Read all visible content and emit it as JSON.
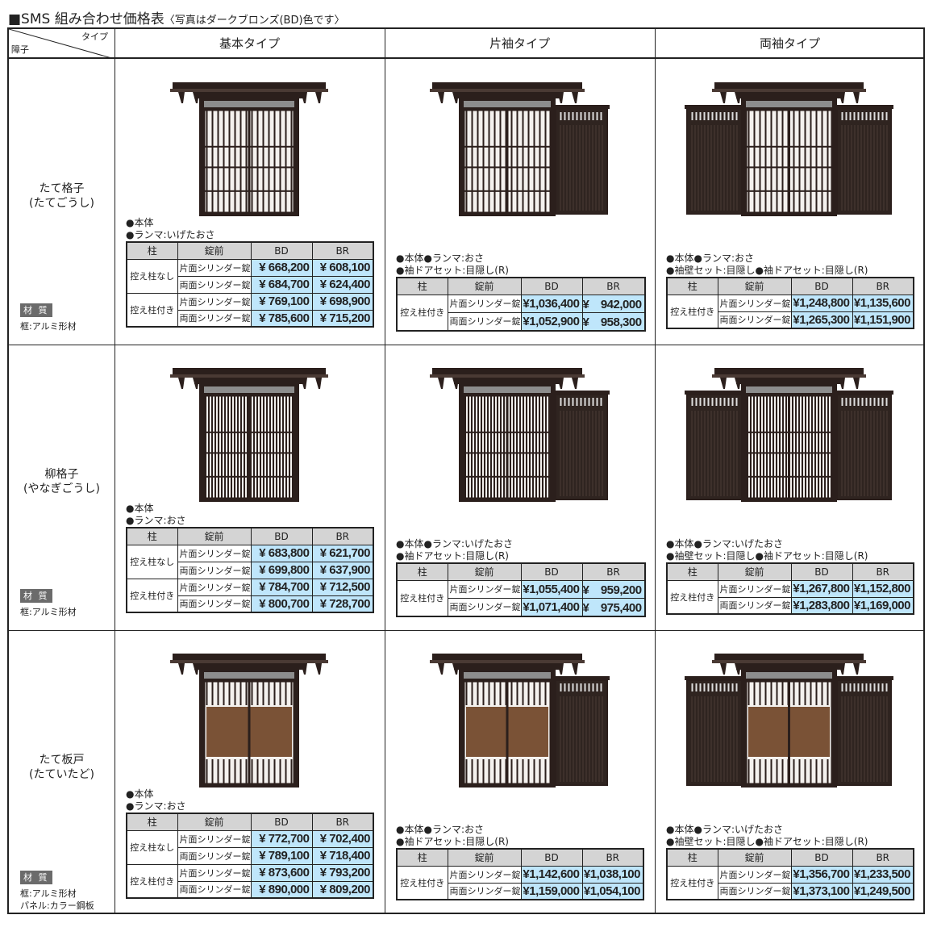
{
  "title": {
    "main": "■SMS 組み合わせ価格表",
    "note": "〈写真はダークブロンズ(BD)色です〉"
  },
  "header": {
    "corner_type": "タイプ",
    "corner_row": "障子",
    "columns": [
      "基本タイプ",
      "片袖タイプ",
      "両袖タイプ"
    ]
  },
  "table_headers": {
    "post": "柱",
    "lock": "錠前",
    "bd": "BD",
    "br": "BR"
  },
  "colors": {
    "price_bg": "#bfe6fb",
    "header_bg": "#d4d4d4",
    "frame": "#2b1f1c",
    "wood": "#7a5236"
  },
  "rows": [
    {
      "name": "たて格子",
      "reading": "(たてごうし)",
      "material_badge": "材 質",
      "material": [
        "框:アルミ形材"
      ],
      "pattern": "tate",
      "cells": [
        {
          "notes": [
            "●本体",
            "●ランマ:いげたおさ"
          ],
          "groups": [
            {
              "post": "控え柱なし",
              "locks": [
                {
                  "lock": "片面シリンダー錠",
                  "bd": "¥ 668,200",
                  "br": "¥ 608,100"
                },
                {
                  "lock": "両面シリンダー錠",
                  "bd": "¥ 684,700",
                  "br": "¥ 624,400"
                }
              ]
            },
            {
              "post": "控え柱付き",
              "locks": [
                {
                  "lock": "片面シリンダー錠",
                  "bd": "¥ 769,100",
                  "br": "¥ 698,900"
                },
                {
                  "lock": "両面シリンダー錠",
                  "bd": "¥ 785,600",
                  "br": "¥ 715,200"
                }
              ]
            }
          ]
        },
        {
          "notes": [
            "●本体●ランマ:おさ",
            "●袖ドアセット:目隠し(R)"
          ],
          "groups": [
            {
              "post": "控え柱付き",
              "locks": [
                {
                  "lock": "片面シリンダー錠",
                  "bd": "¥1,036,400",
                  "br": "¥　942,000"
                },
                {
                  "lock": "両面シリンダー錠",
                  "bd": "¥1,052,900",
                  "br": "¥　958,300"
                }
              ]
            }
          ]
        },
        {
          "notes": [
            "●本体●ランマ:おさ",
            "●袖壁セット:目隠し●袖ドアセット:目隠し(R)"
          ],
          "groups": [
            {
              "post": "控え柱付き",
              "locks": [
                {
                  "lock": "片面シリンダー錠",
                  "bd": "¥1,248,800",
                  "br": "¥1,135,600"
                },
                {
                  "lock": "両面シリンダー錠",
                  "bd": "¥1,265,300",
                  "br": "¥1,151,900"
                }
              ]
            }
          ]
        }
      ]
    },
    {
      "name": "柳格子",
      "reading": "(やなぎごうし)",
      "material_badge": "材 質",
      "material": [
        "框:アルミ形材"
      ],
      "pattern": "yanagi",
      "cells": [
        {
          "notes": [
            "●本体",
            "●ランマ:おさ"
          ],
          "groups": [
            {
              "post": "控え柱なし",
              "locks": [
                {
                  "lock": "片面シリンダー錠",
                  "bd": "¥ 683,800",
                  "br": "¥ 621,700"
                },
                {
                  "lock": "両面シリンダー錠",
                  "bd": "¥ 699,800",
                  "br": "¥ 637,900"
                }
              ]
            },
            {
              "post": "控え柱付き",
              "locks": [
                {
                  "lock": "片面シリンダー錠",
                  "bd": "¥ 784,700",
                  "br": "¥ 712,500"
                },
                {
                  "lock": "両面シリンダー錠",
                  "bd": "¥ 800,700",
                  "br": "¥ 728,700"
                }
              ]
            }
          ]
        },
        {
          "notes": [
            "●本体●ランマ:いげたおさ",
            "●袖ドアセット:目隠し(R)"
          ],
          "groups": [
            {
              "post": "控え柱付き",
              "locks": [
                {
                  "lock": "片面シリンダー錠",
                  "bd": "¥1,055,400",
                  "br": "¥　959,200"
                },
                {
                  "lock": "両面シリンダー錠",
                  "bd": "¥1,071,400",
                  "br": "¥　975,400"
                }
              ]
            }
          ]
        },
        {
          "notes": [
            "●本体●ランマ:いげたおさ",
            "●袖壁セット:目隠し●袖ドアセット:目隠し(R)"
          ],
          "groups": [
            {
              "post": "控え柱付き",
              "locks": [
                {
                  "lock": "片面シリンダー錠",
                  "bd": "¥1,267,800",
                  "br": "¥1,152,800"
                },
                {
                  "lock": "両面シリンダー錠",
                  "bd": "¥1,283,800",
                  "br": "¥1,169,000"
                }
              ]
            }
          ]
        }
      ]
    },
    {
      "name": "たて板戸",
      "reading": "(たていたど)",
      "material_badge": "材 質",
      "material": [
        "框:アルミ形材",
        "パネル:カラー鋼板"
      ],
      "pattern": "itado",
      "cells": [
        {
          "notes": [
            "●本体",
            "●ランマ:おさ"
          ],
          "groups": [
            {
              "post": "控え柱なし",
              "locks": [
                {
                  "lock": "片面シリンダー錠",
                  "bd": "¥ 772,700",
                  "br": "¥ 702,400"
                },
                {
                  "lock": "両面シリンダー錠",
                  "bd": "¥ 789,100",
                  "br": "¥ 718,400"
                }
              ]
            },
            {
              "post": "控え柱付き",
              "locks": [
                {
                  "lock": "片面シリンダー錠",
                  "bd": "¥ 873,600",
                  "br": "¥ 793,200"
                },
                {
                  "lock": "両面シリンダー錠",
                  "bd": "¥ 890,000",
                  "br": "¥ 809,200"
                }
              ]
            }
          ]
        },
        {
          "notes": [
            "●本体●ランマ:おさ",
            "●袖ドアセット:目隠し(R)"
          ],
          "groups": [
            {
              "post": "控え柱付き",
              "locks": [
                {
                  "lock": "片面シリンダー錠",
                  "bd": "¥1,142,600",
                  "br": "¥1,038,100"
                },
                {
                  "lock": "両面シリンダー錠",
                  "bd": "¥1,159,000",
                  "br": "¥1,054,100"
                }
              ]
            }
          ]
        },
        {
          "notes": [
            "●本体●ランマ:いげたおさ",
            "●袖壁セット:目隠し●袖ドアセット:目隠し(R)"
          ],
          "groups": [
            {
              "post": "控え柱付き",
              "locks": [
                {
                  "lock": "片面シリンダー錠",
                  "bd": "¥1,356,700",
                  "br": "¥1,233,500"
                },
                {
                  "lock": "両面シリンダー錠",
                  "bd": "¥1,373,100",
                  "br": "¥1,249,500"
                }
              ]
            }
          ]
        }
      ]
    }
  ]
}
